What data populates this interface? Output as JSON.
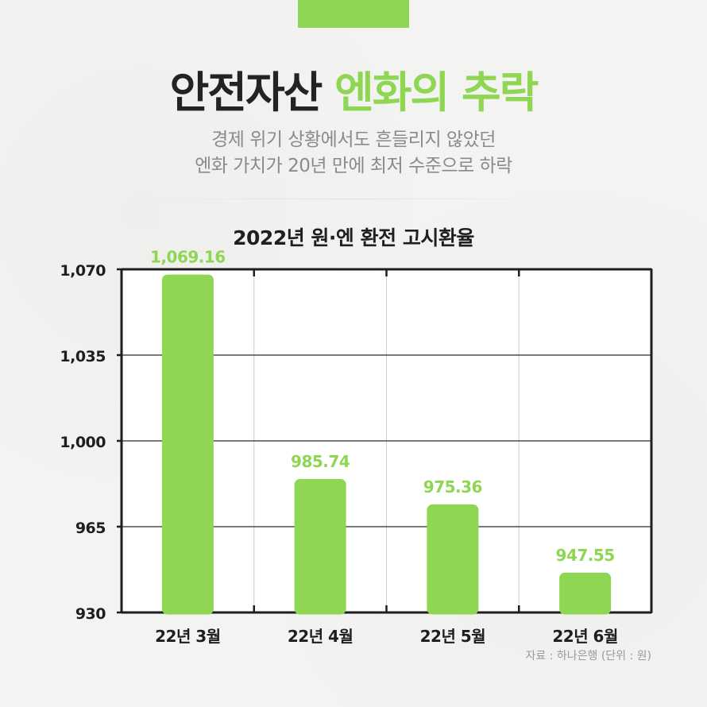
{
  "header": {
    "title_main": "안전자산",
    "title_accent": "엔화의 추락",
    "subtitle_line1": "경제 위기 상황에서도 흔들리지 않았던",
    "subtitle_line2": "엔화 가치가 20년 만에 최저 수준으로 하락"
  },
  "colors": {
    "accent": "#8fd653",
    "text_dark": "#232323",
    "subtitle": "#8a8a8a"
  },
  "source_note": "자료 : 하나은행 (단위 :  원)",
  "chart_data": {
    "type": "bar",
    "title": "2022년 원·엔 환전 고시환율",
    "categories": [
      "22년 3월",
      "22년 4월",
      "22년 5월",
      "22년 6월"
    ],
    "values": [
      1069.16,
      985.74,
      975.36,
      947.55
    ],
    "value_labels": [
      "1,069.16",
      "985.74",
      "975.36",
      "947.55"
    ],
    "yticks": [
      930,
      965,
      1000,
      1035,
      1070
    ],
    "ytick_labels": [
      "930",
      "965",
      "1,000",
      "1,035",
      "1,070"
    ],
    "ylim": [
      930,
      1070
    ],
    "grid": true,
    "xlabel": "",
    "ylabel": ""
  }
}
